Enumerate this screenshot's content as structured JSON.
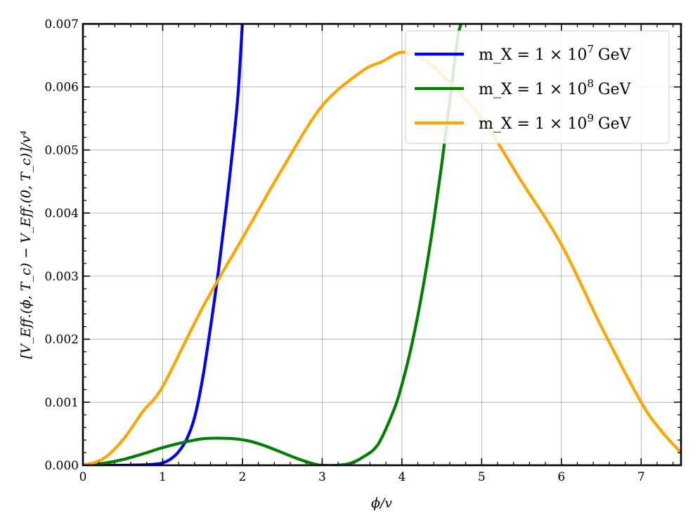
{
  "chart_data": {
    "type": "line",
    "xlabel": "ϕ/v",
    "ylabel": "[V_Eff.(ϕ, T_c) − V_Eff.(0, T_c)]/v⁴",
    "xlim": [
      0,
      7.5
    ],
    "ylim": [
      0,
      0.007
    ],
    "x_ticks": [
      0,
      1,
      2,
      3,
      4,
      5,
      6,
      7
    ],
    "y_ticks": [
      0.0,
      0.001,
      0.002,
      0.003,
      0.004,
      0.005,
      0.006,
      0.007
    ],
    "x_tick_labels": [
      "0",
      "1",
      "2",
      "3",
      "4",
      "5",
      "6",
      "7"
    ],
    "y_tick_labels": [
      "0.000",
      "0.001",
      "0.002",
      "0.003",
      "0.004",
      "0.005",
      "0.006",
      "0.007"
    ],
    "grid": true,
    "legend_position": "top-right",
    "series": [
      {
        "name": "m_X = 1 × 10^7 GeV",
        "name_base": "m_X = 1 × 10",
        "name_exp": "7",
        "name_unit": "GeV",
        "color": "#0000ff",
        "x": [
          0,
          0.4,
          0.6,
          0.8,
          0.9,
          1.0,
          1.1,
          1.2,
          1.3,
          1.4,
          1.5,
          1.6,
          1.7,
          1.8,
          1.9,
          1.95,
          2.0
        ],
        "y": [
          0,
          0.0,
          2e-06,
          8e-06,
          1.7e-05,
          3.8e-05,
          9.8e-05,
          0.000215,
          0.00041,
          0.00076,
          0.00137,
          0.00219,
          0.00309,
          0.00413,
          0.00527,
          0.00597,
          0.00702
        ]
      },
      {
        "name": "m_X = 1 × 10^8 GeV",
        "name_base": "m_X = 1 × 10",
        "name_exp": "8",
        "name_unit": "GeV",
        "color": "#008000",
        "x": [
          0,
          0.25,
          0.5,
          0.75,
          1.0,
          1.25,
          1.5,
          1.7,
          1.9,
          2.1,
          2.3,
          2.5,
          2.7,
          2.9,
          3.0,
          3.2,
          3.35,
          3.5,
          3.7,
          3.9,
          4.0,
          4.1,
          4.2,
          4.3,
          4.4,
          4.5,
          4.6,
          4.7,
          4.75
        ],
        "y": [
          0,
          3e-05,
          9e-05,
          0.00018,
          0.00028,
          0.00036,
          0.00042,
          0.00043,
          0.00042,
          0.00038,
          0.0003,
          0.0002,
          0.0001,
          2e-05,
          0.0,
          0.0,
          3e-05,
          0.00012,
          0.00033,
          0.00088,
          0.00128,
          0.00178,
          0.00238,
          0.00308,
          0.00388,
          0.00478,
          0.00578,
          0.00678,
          0.00702
        ]
      },
      {
        "name": "m_X = 1 × 10^9 GeV",
        "name_base": "m_X = 1 × 10",
        "name_exp": "9",
        "name_unit": "GeV",
        "color": "#ffa500",
        "x": [
          0,
          0.25,
          0.5,
          0.75,
          1.0,
          1.5,
          2.0,
          2.5,
          3.0,
          3.5,
          3.75,
          4.0,
          4.25,
          4.5,
          5.0,
          5.5,
          6.0,
          6.5,
          7.0,
          7.25,
          7.5
        ],
        "y": [
          0,
          0.0001,
          0.0004,
          0.00085,
          0.00125,
          0.0025,
          0.0036,
          0.0047,
          0.0057,
          0.00625,
          0.0064,
          0.00655,
          0.00645,
          0.0062,
          0.0055,
          0.0045,
          0.0035,
          0.0022,
          0.001,
          0.00055,
          0.0002
        ]
      }
    ]
  }
}
